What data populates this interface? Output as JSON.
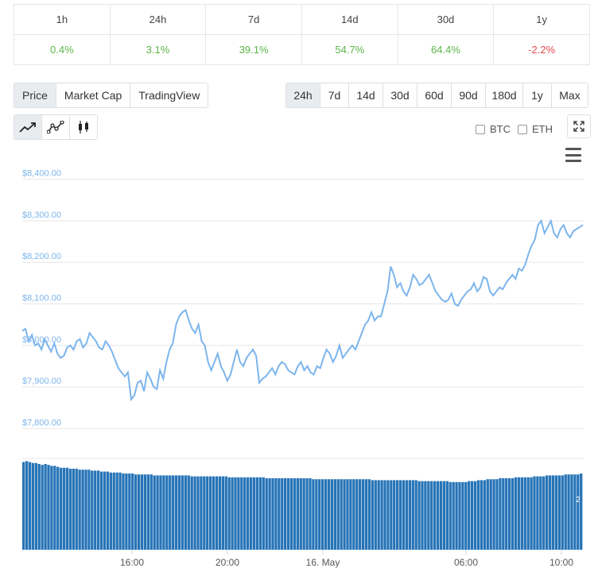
{
  "performance": {
    "headers": [
      "1h",
      "24h",
      "7d",
      "14d",
      "30d",
      "1y"
    ],
    "values": [
      "0.4%",
      "3.1%",
      "39.1%",
      "54.7%",
      "64.4%",
      "-2.2%"
    ],
    "positive_color": "#5cb547",
    "negative_color": "#e5484d"
  },
  "chart_type_tabs": [
    {
      "label": "Price",
      "active": true
    },
    {
      "label": "Market Cap",
      "active": false
    },
    {
      "label": "TradingView",
      "active": false
    }
  ],
  "range_tabs": [
    {
      "label": "24h",
      "active": true
    },
    {
      "label": "7d",
      "active": false
    },
    {
      "label": "14d",
      "active": false
    },
    {
      "label": "30d",
      "active": false
    },
    {
      "label": "60d",
      "active": false
    },
    {
      "label": "90d",
      "active": false
    },
    {
      "label": "180d",
      "active": false
    },
    {
      "label": "1y",
      "active": false
    },
    {
      "label": "Max",
      "active": false
    }
  ],
  "style_icons": [
    "line-chart-icon",
    "point-line-chart-icon",
    "candlestick-icon"
  ],
  "compare": {
    "btc": "BTC",
    "eth": "ETH"
  },
  "chart_data": {
    "type": "line",
    "line_color": "#7cb5ec",
    "volume_color": "#2774b7",
    "y_ticks": [
      "$8,400.00",
      "$8,300.00",
      "$8,200.00",
      "$8,100.00",
      "$8,000.00",
      "$7,900.00",
      "$7,800.00"
    ],
    "y_tick_values": [
      8400,
      8300,
      8200,
      8100,
      8000,
      7900,
      7800
    ],
    "ylim": [
      7770,
      8430
    ],
    "x_ticks": [
      "16:00",
      "20:00",
      "16. May",
      "06:00",
      "10:00"
    ],
    "x_tick_hours": [
      4.6,
      8.6,
      12.6,
      18.6,
      22.6
    ],
    "x_range_hours": [
      0,
      23.5
    ],
    "volume_label": "2",
    "series": [
      {
        "values": [
          8035,
          8040,
          8010,
          8025,
          8000,
          8005,
          7990,
          8015,
          8000,
          7985,
          8005,
          7980,
          7970,
          7975,
          7995,
          8000,
          7990,
          8010,
          8015,
          7995,
          8005,
          8030,
          8020,
          8010,
          7995,
          7990,
          8010,
          8000,
          7985,
          7965,
          7945,
          7935,
          7925,
          7935,
          7870,
          7880,
          7910,
          7915,
          7890,
          7935,
          7920,
          7900,
          7895,
          7940,
          7920,
          7960,
          7990,
          8005,
          8050,
          8070,
          8080,
          8085,
          8060,
          8040,
          8030,
          8050,
          8010,
          8000,
          7960,
          7940,
          7960,
          7980,
          7950,
          7935,
          7915,
          7930,
          7960,
          7990,
          7960,
          7950,
          7970,
          7980,
          7990,
          7975,
          7910,
          7920,
          7925,
          7935,
          7945,
          7930,
          7950,
          7960,
          7955,
          7940,
          7935,
          7930,
          7950,
          7960,
          7940,
          7950,
          7935,
          7930,
          7950,
          7945,
          7970,
          7990,
          7980,
          7960,
          7975,
          8000,
          7970,
          7980,
          7990,
          8000,
          7990,
          8010,
          8030,
          8050,
          8060,
          8080,
          8060,
          8070,
          8070,
          8100,
          8130,
          8190,
          8170,
          8140,
          8150,
          8130,
          8120,
          8140,
          8170,
          8160,
          8145,
          8150,
          8160,
          8170,
          8150,
          8130,
          8120,
          8110,
          8105,
          8110,
          8125,
          8100,
          8095,
          8110,
          8120,
          8130,
          8135,
          8150,
          8130,
          8140,
          8165,
          8160,
          8130,
          8120,
          8130,
          8140,
          8135,
          8150,
          8160,
          8170,
          8160,
          8185,
          8180,
          8195,
          8220,
          8240,
          8255,
          8290,
          8300,
          8270,
          8285,
          8300,
          8270,
          8260,
          8280,
          8290,
          8270,
          8260,
          8275,
          8280,
          8285,
          8290
        ]
      }
    ],
    "volume": [
      92,
      93,
      92,
      91,
      91,
      90,
      89,
      90,
      89,
      88,
      88,
      87,
      86,
      86,
      86,
      85,
      85,
      85,
      84,
      84,
      84,
      84,
      83,
      83,
      83,
      82,
      82,
      82,
      81,
      81,
      81,
      81,
      80,
      80,
      80,
      80,
      79,
      79,
      79,
      79,
      79,
      79,
      78,
      78,
      78,
      78,
      78,
      78,
      78,
      78,
      78,
      78,
      78,
      78,
      77,
      77,
      77,
      77,
      77,
      77,
      77,
      77,
      77,
      77,
      77,
      77,
      76,
      76,
      76,
      76,
      76,
      76,
      76,
      76,
      76,
      76,
      76,
      76,
      75,
      75,
      75,
      75,
      75,
      75,
      75,
      75,
      75,
      75,
      75,
      75,
      75,
      75,
      75,
      74,
      74,
      74,
      74,
      74,
      74,
      74,
      74,
      74,
      74,
      74,
      74,
      74,
      74,
      74,
      74,
      74,
      74,
      74,
      73,
      73,
      73,
      73,
      73,
      73,
      73,
      73,
      73,
      73,
      73,
      73,
      73,
      73,
      73,
      72,
      72,
      72,
      72,
      72,
      72,
      72,
      72,
      72,
      72,
      71,
      71,
      71,
      71,
      71,
      71,
      72,
      72,
      72,
      73,
      73,
      73,
      74,
      74,
      74,
      74,
      75,
      75,
      75,
      75,
      75,
      76,
      76,
      76,
      76,
      76,
      76,
      77,
      77,
      77,
      77,
      78,
      78,
      78,
      78,
      78,
      78,
      79,
      79,
      79,
      79,
      79,
      80
    ]
  }
}
